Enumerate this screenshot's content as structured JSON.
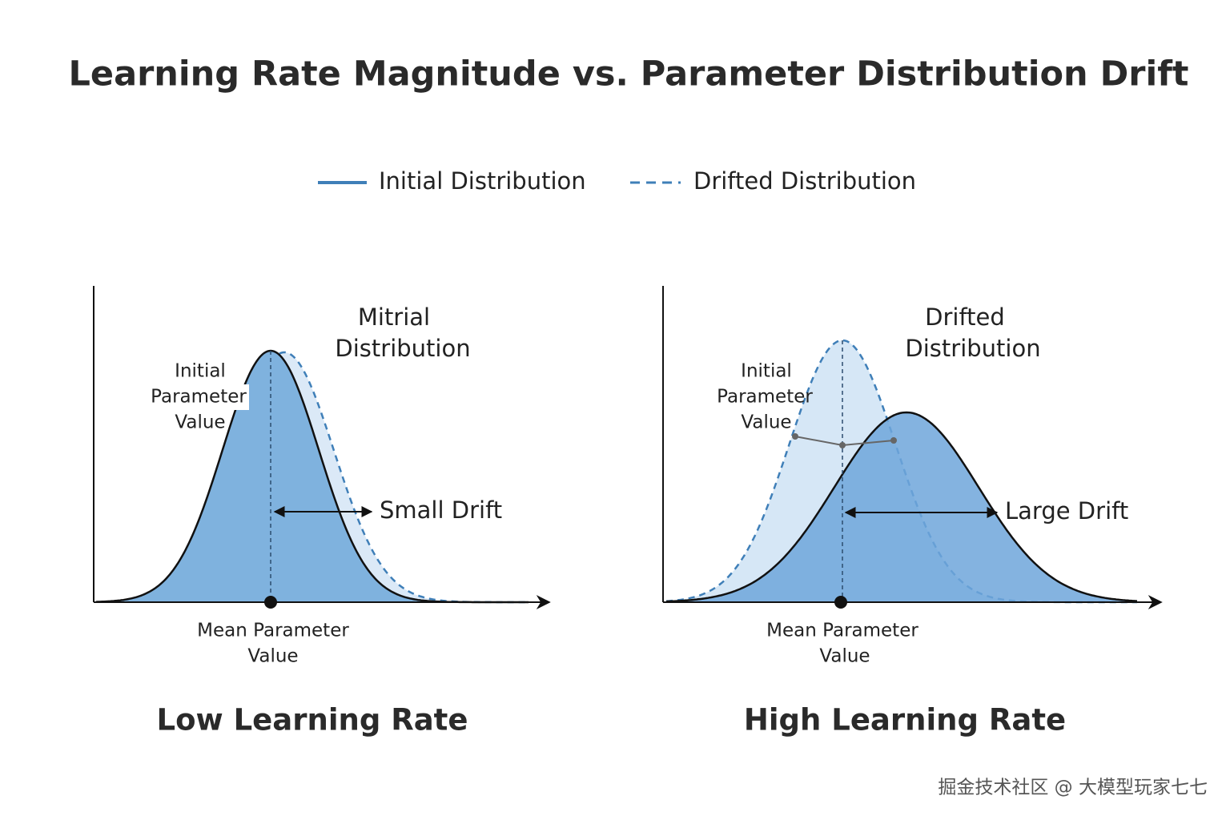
{
  "title": "Learning Rate Magnitude vs. Parameter Distribution Drift",
  "legend": [
    "Initial Distribution",
    "Drifted Distribution"
  ],
  "panels": [
    {
      "title": "Low Learning Rate",
      "curve_label": [
        "Mitrial",
        "Distribution"
      ],
      "initial_label": [
        "Initial",
        "Parameter",
        "Value"
      ],
      "drift_label": "Small Drift",
      "mean_label": [
        "Mean Parameter",
        "Value"
      ]
    },
    {
      "title": "High Learning Rate",
      "curve_label": [
        "Drifted",
        "Distribution"
      ],
      "initial_label": [
        "Initial",
        "Parameter",
        "Value"
      ],
      "drift_label": "Large Drift",
      "mean_label": [
        "Mean Parameter",
        "Value"
      ]
    }
  ],
  "watermark": "掘金技术社区 @ 大模型玩家七七"
}
